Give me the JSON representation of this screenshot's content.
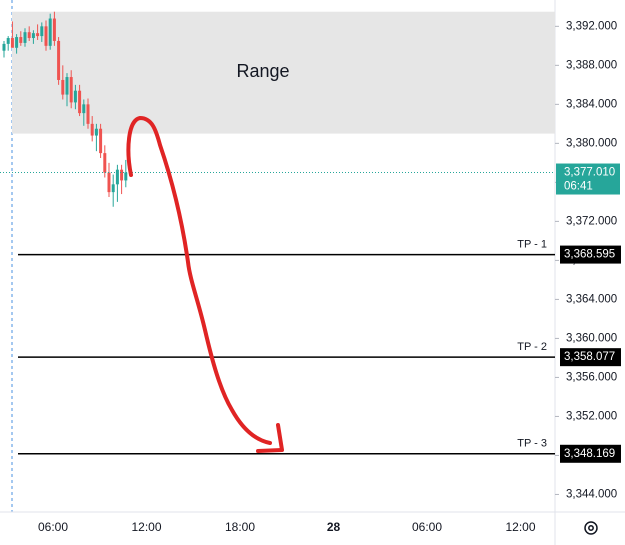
{
  "chart_data": {
    "type": "candlestick",
    "ylim": [
      3342.2,
      3394.7
    ],
    "yticks": [
      {
        "value": 3344,
        "label": "3,344.000"
      },
      {
        "value": 3348,
        "label": "3,348.000"
      },
      {
        "value": 3352,
        "label": "3,352.000"
      },
      {
        "value": 3356,
        "label": "3,356.000"
      },
      {
        "value": 3360,
        "label": "3,360.000"
      },
      {
        "value": 3364,
        "label": "3,364.000"
      },
      {
        "value": 3368,
        "label": "3,368.000"
      },
      {
        "value": 3372,
        "label": "3,372.000"
      },
      {
        "value": 3376,
        "label": "3,376.000"
      },
      {
        "value": 3380,
        "label": "3,380.000"
      },
      {
        "value": 3384,
        "label": "3,384.000"
      },
      {
        "value": 3388,
        "label": "3,388.000"
      },
      {
        "value": 3392,
        "label": "3,392.000"
      }
    ],
    "categories": [
      "06:00",
      "12:00",
      "18:00",
      "28",
      "06:00",
      "12:00"
    ],
    "up_color": "#26a69a",
    "down_color": "#ef5350",
    "ohlc": [
      [
        3389.5,
        3390.5,
        3388.8,
        3390.2
      ],
      [
        3390.2,
        3391,
        3389.5,
        3390.8
      ],
      [
        3390.8,
        3392.5,
        3390,
        3389.8
      ],
      [
        3389.8,
        3391.2,
        3389.2,
        3390.9
      ],
      [
        3390.9,
        3391.5,
        3390,
        3390.3
      ],
      [
        3390.3,
        3391.8,
        3389.9,
        3391.4
      ],
      [
        3391.4,
        3392,
        3390.5,
        3390.8
      ],
      [
        3390.8,
        3391.6,
        3390.2,
        3391.3
      ],
      [
        3391.3,
        3392.2,
        3390.6,
        3391
      ],
      [
        3391,
        3392.4,
        3390.4,
        3392
      ],
      [
        3392,
        3392.6,
        3389.5,
        3390
      ],
      [
        3390,
        3393.3,
        3389.6,
        3392.8
      ],
      [
        3392.8,
        3393.5,
        3390,
        3390.5
      ],
      [
        3390.5,
        3390.9,
        3386,
        3386.5
      ],
      [
        3386.5,
        3388,
        3384.5,
        3385
      ],
      [
        3385,
        3387.2,
        3383.8,
        3386.8
      ],
      [
        3386.8,
        3387.5,
        3383.6,
        3384.2
      ],
      [
        3384.2,
        3386,
        3383.5,
        3385.4
      ],
      [
        3385.4,
        3386,
        3382.8,
        3383.1
      ],
      [
        3383.1,
        3384.5,
        3381.8,
        3384
      ],
      [
        3384,
        3384.6,
        3381.5,
        3382
      ],
      [
        3382,
        3382.8,
        3380.2,
        3380.8
      ],
      [
        3380.8,
        3382,
        3379.2,
        3381.5
      ],
      [
        3381.5,
        3382,
        3378.5,
        3379
      ],
      [
        3379,
        3379.8,
        3376.5,
        3377
      ],
      [
        3377,
        3378,
        3374.5,
        3375
      ],
      [
        3375,
        3376.8,
        3373.5,
        3375.8
      ],
      [
        3375.8,
        3377.8,
        3374,
        3377.3
      ],
      [
        3377.3,
        3377.8,
        3374.8,
        3376.2
      ],
      [
        3376.2,
        3378.3,
        3375.5,
        3377.01
      ]
    ],
    "range_zone": {
      "label": "Range",
      "from": 3381,
      "to": 3393.5
    },
    "current": {
      "price": {
        "value": 3377.01,
        "label": "3,377.010"
      },
      "countdown": "06:41",
      "color": "#26a69a"
    },
    "levels": [
      {
        "name": "TP - 1",
        "price": {
          "value": 3368.595,
          "label": "3,368.595"
        }
      },
      {
        "name": "TP - 2",
        "price": {
          "value": 3358.077,
          "label": "3,358.077"
        }
      },
      {
        "name": "TP - 3",
        "price": {
          "value": 3348.169,
          "label": "3,348.169"
        }
      }
    ]
  }
}
